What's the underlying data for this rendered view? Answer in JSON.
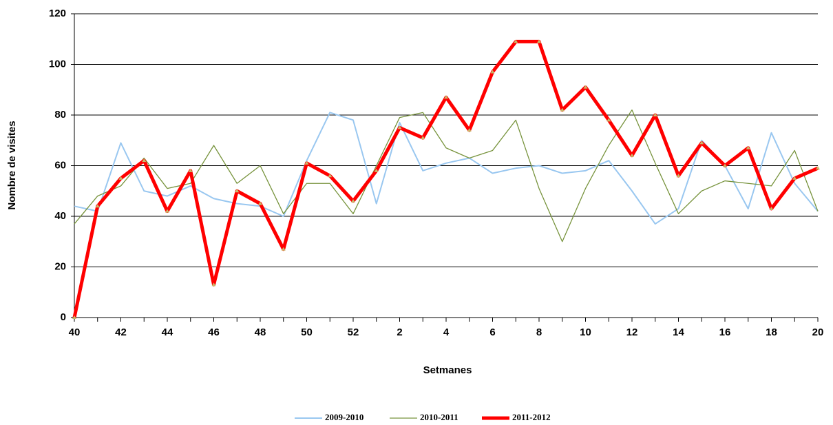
{
  "chart_data": {
    "type": "line",
    "x_label": "Setmanes",
    "y_label": "Nombre de visites",
    "categories": [
      "40",
      null,
      "42",
      null,
      "44",
      null,
      "46",
      null,
      "48",
      null,
      "50",
      null,
      "52",
      null,
      "2",
      null,
      "4",
      null,
      "6",
      null,
      "8",
      null,
      "10",
      null,
      "12",
      null,
      "14",
      null,
      "16",
      null,
      "18",
      null,
      "20"
    ],
    "series": [
      {
        "name": "2009-2010",
        "color": "#99c7f0",
        "width": 2,
        "values": [
          44,
          42,
          69,
          50,
          48,
          52,
          47,
          45,
          44,
          40,
          62,
          81,
          78,
          45,
          77,
          58,
          61,
          63,
          57,
          59,
          60,
          57,
          58,
          62,
          50,
          37,
          43,
          70,
          60,
          43,
          73,
          53,
          42
        ]
      },
      {
        "name": "2010-2011",
        "color": "#77933c",
        "width": 1.3,
        "values": [
          37,
          48,
          52,
          63,
          51,
          53,
          68,
          53,
          60,
          41,
          53,
          53,
          41,
          60,
          79,
          81,
          67,
          63,
          66,
          78,
          51,
          30,
          51,
          68,
          82,
          61,
          41,
          50,
          54,
          53,
          52,
          66,
          42
        ]
      },
      {
        "name": "2011-2012",
        "color": "#ff0000",
        "width": 5,
        "markers": true,
        "values": [
          0,
          44,
          55,
          62,
          42,
          58,
          13,
          50,
          45,
          27,
          61,
          56,
          46,
          58,
          75,
          71,
          87,
          74,
          97,
          109,
          109,
          82,
          91,
          78,
          64,
          80,
          56,
          69,
          60,
          67,
          43,
          55,
          59
        ]
      }
    ],
    "ylim": [
      0,
      120
    ],
    "yticks": [
      0,
      20,
      40,
      60,
      80,
      100,
      120
    ],
    "grid": true,
    "legend": "bottom"
  }
}
